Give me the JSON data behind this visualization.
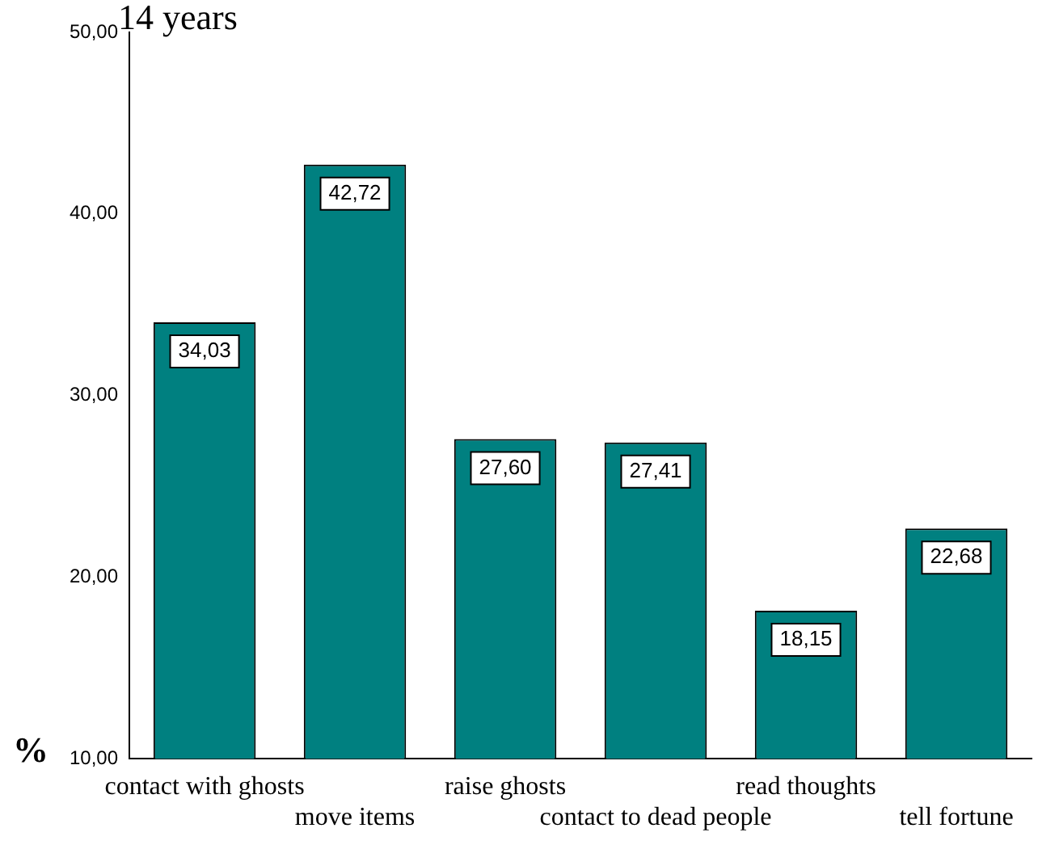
{
  "chart_data": {
    "type": "bar",
    "title": "14 years",
    "ylabel": "%",
    "categories": [
      "contact with ghosts",
      "move items",
      "raise ghosts",
      "contact to dead people",
      "read thoughts",
      "tell fortune"
    ],
    "values": [
      34.03,
      42.72,
      27.6,
      27.41,
      18.15,
      22.68
    ],
    "value_labels": [
      "34,03",
      "42,72",
      "27,60",
      "27,41",
      "18,15",
      "22,68"
    ],
    "color": "#008080",
    "ylim": [
      10,
      50
    ],
    "yticks": [
      {
        "value": 10,
        "label": "10,00"
      },
      {
        "value": 20,
        "label": "20,00"
      },
      {
        "value": 30,
        "label": "30,00"
      },
      {
        "value": 40,
        "label": "40,00"
      },
      {
        "value": 50,
        "label": "50,00"
      }
    ],
    "grid": false,
    "legend": false
  }
}
